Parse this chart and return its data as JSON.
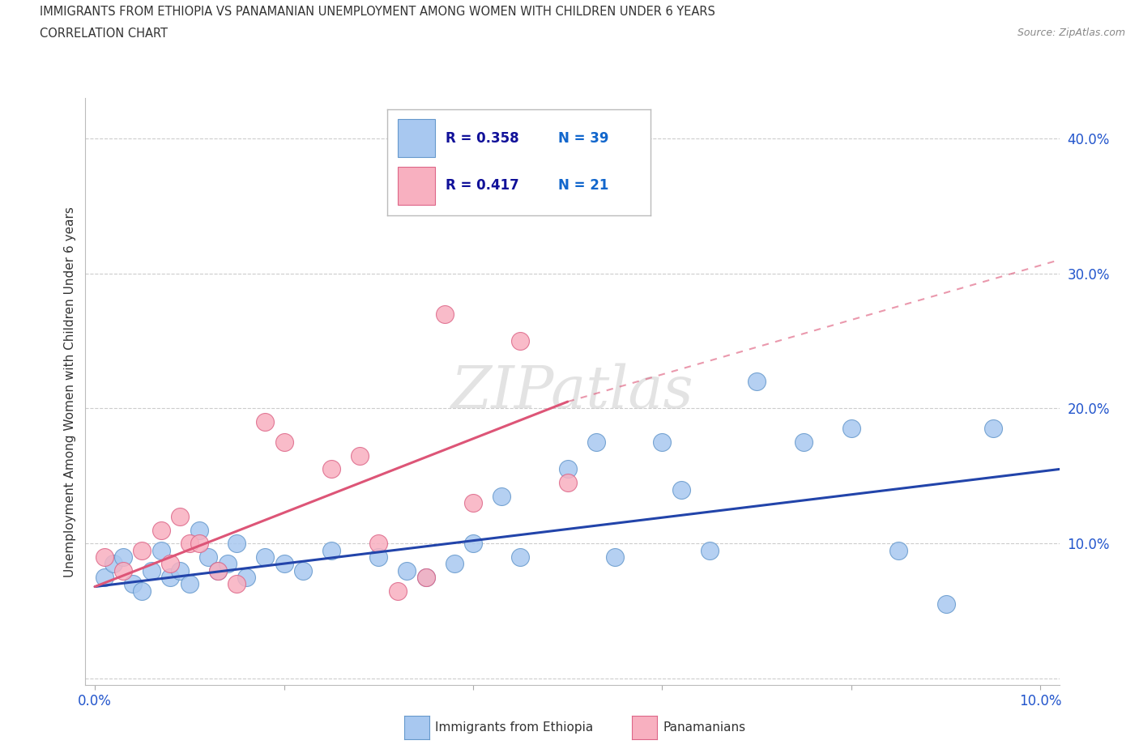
{
  "title_line1": "IMMIGRANTS FROM ETHIOPIA VS PANAMANIAN UNEMPLOYMENT AMONG WOMEN WITH CHILDREN UNDER 6 YEARS",
  "title_line2": "CORRELATION CHART",
  "source": "Source: ZipAtlas.com",
  "ylabel": "Unemployment Among Women with Children Under 6 years",
  "xlim": [
    -0.001,
    0.102
  ],
  "ylim": [
    -0.005,
    0.43
  ],
  "xticks": [
    0.0,
    0.02,
    0.04,
    0.06,
    0.08,
    0.1
  ],
  "yticks": [
    0.0,
    0.1,
    0.2,
    0.3,
    0.4
  ],
  "ytick_labels": [
    "",
    "10.0%",
    "20.0%",
    "30.0%",
    "40.0%"
  ],
  "xtick_labels": [
    "0.0%",
    "",
    "",
    "",
    "",
    "10.0%"
  ],
  "blue_scatter_x": [
    0.001,
    0.002,
    0.003,
    0.004,
    0.005,
    0.006,
    0.007,
    0.008,
    0.009,
    0.01,
    0.011,
    0.012,
    0.013,
    0.014,
    0.015,
    0.016,
    0.018,
    0.02,
    0.022,
    0.025,
    0.03,
    0.033,
    0.035,
    0.038,
    0.04,
    0.043,
    0.045,
    0.05,
    0.053,
    0.055,
    0.06,
    0.062,
    0.065,
    0.07,
    0.075,
    0.08,
    0.085,
    0.09,
    0.095
  ],
  "blue_scatter_y": [
    0.075,
    0.085,
    0.09,
    0.07,
    0.065,
    0.08,
    0.095,
    0.075,
    0.08,
    0.07,
    0.11,
    0.09,
    0.08,
    0.085,
    0.1,
    0.075,
    0.09,
    0.085,
    0.08,
    0.095,
    0.09,
    0.08,
    0.075,
    0.085,
    0.1,
    0.135,
    0.09,
    0.155,
    0.175,
    0.09,
    0.175,
    0.14,
    0.095,
    0.22,
    0.175,
    0.185,
    0.095,
    0.055,
    0.185
  ],
  "pink_scatter_x": [
    0.001,
    0.003,
    0.005,
    0.007,
    0.008,
    0.009,
    0.01,
    0.011,
    0.013,
    0.015,
    0.018,
    0.02,
    0.025,
    0.028,
    0.03,
    0.032,
    0.035,
    0.037,
    0.04,
    0.045,
    0.05
  ],
  "pink_scatter_y": [
    0.09,
    0.08,
    0.095,
    0.11,
    0.085,
    0.12,
    0.1,
    0.1,
    0.08,
    0.07,
    0.19,
    0.175,
    0.155,
    0.165,
    0.1,
    0.065,
    0.075,
    0.27,
    0.13,
    0.25,
    0.145
  ],
  "blue_line_x0": 0.0,
  "blue_line_x1": 0.102,
  "blue_line_y0": 0.068,
  "blue_line_y1": 0.155,
  "pink_line_solid_x0": 0.0,
  "pink_line_solid_x1": 0.05,
  "pink_line_solid_y0": 0.068,
  "pink_line_solid_y1": 0.205,
  "pink_line_dash_x0": 0.05,
  "pink_line_dash_x1": 0.102,
  "pink_line_dash_y0": 0.205,
  "pink_line_dash_y1": 0.31,
  "watermark": "ZIPatlas",
  "blue_color": "#a8c8f0",
  "blue_edge_color": "#6699cc",
  "blue_line_color": "#2244aa",
  "pink_color": "#f8b0c0",
  "pink_edge_color": "#dd6688",
  "pink_line_color": "#dd5577",
  "grid_color": "#cccccc",
  "axis_label_color": "#2255cc",
  "background_color": "#ffffff",
  "legend_r1": "R = 0.358",
  "legend_n1": "N = 39",
  "legend_r2": "R = 0.417",
  "legend_n2": "N = 21"
}
